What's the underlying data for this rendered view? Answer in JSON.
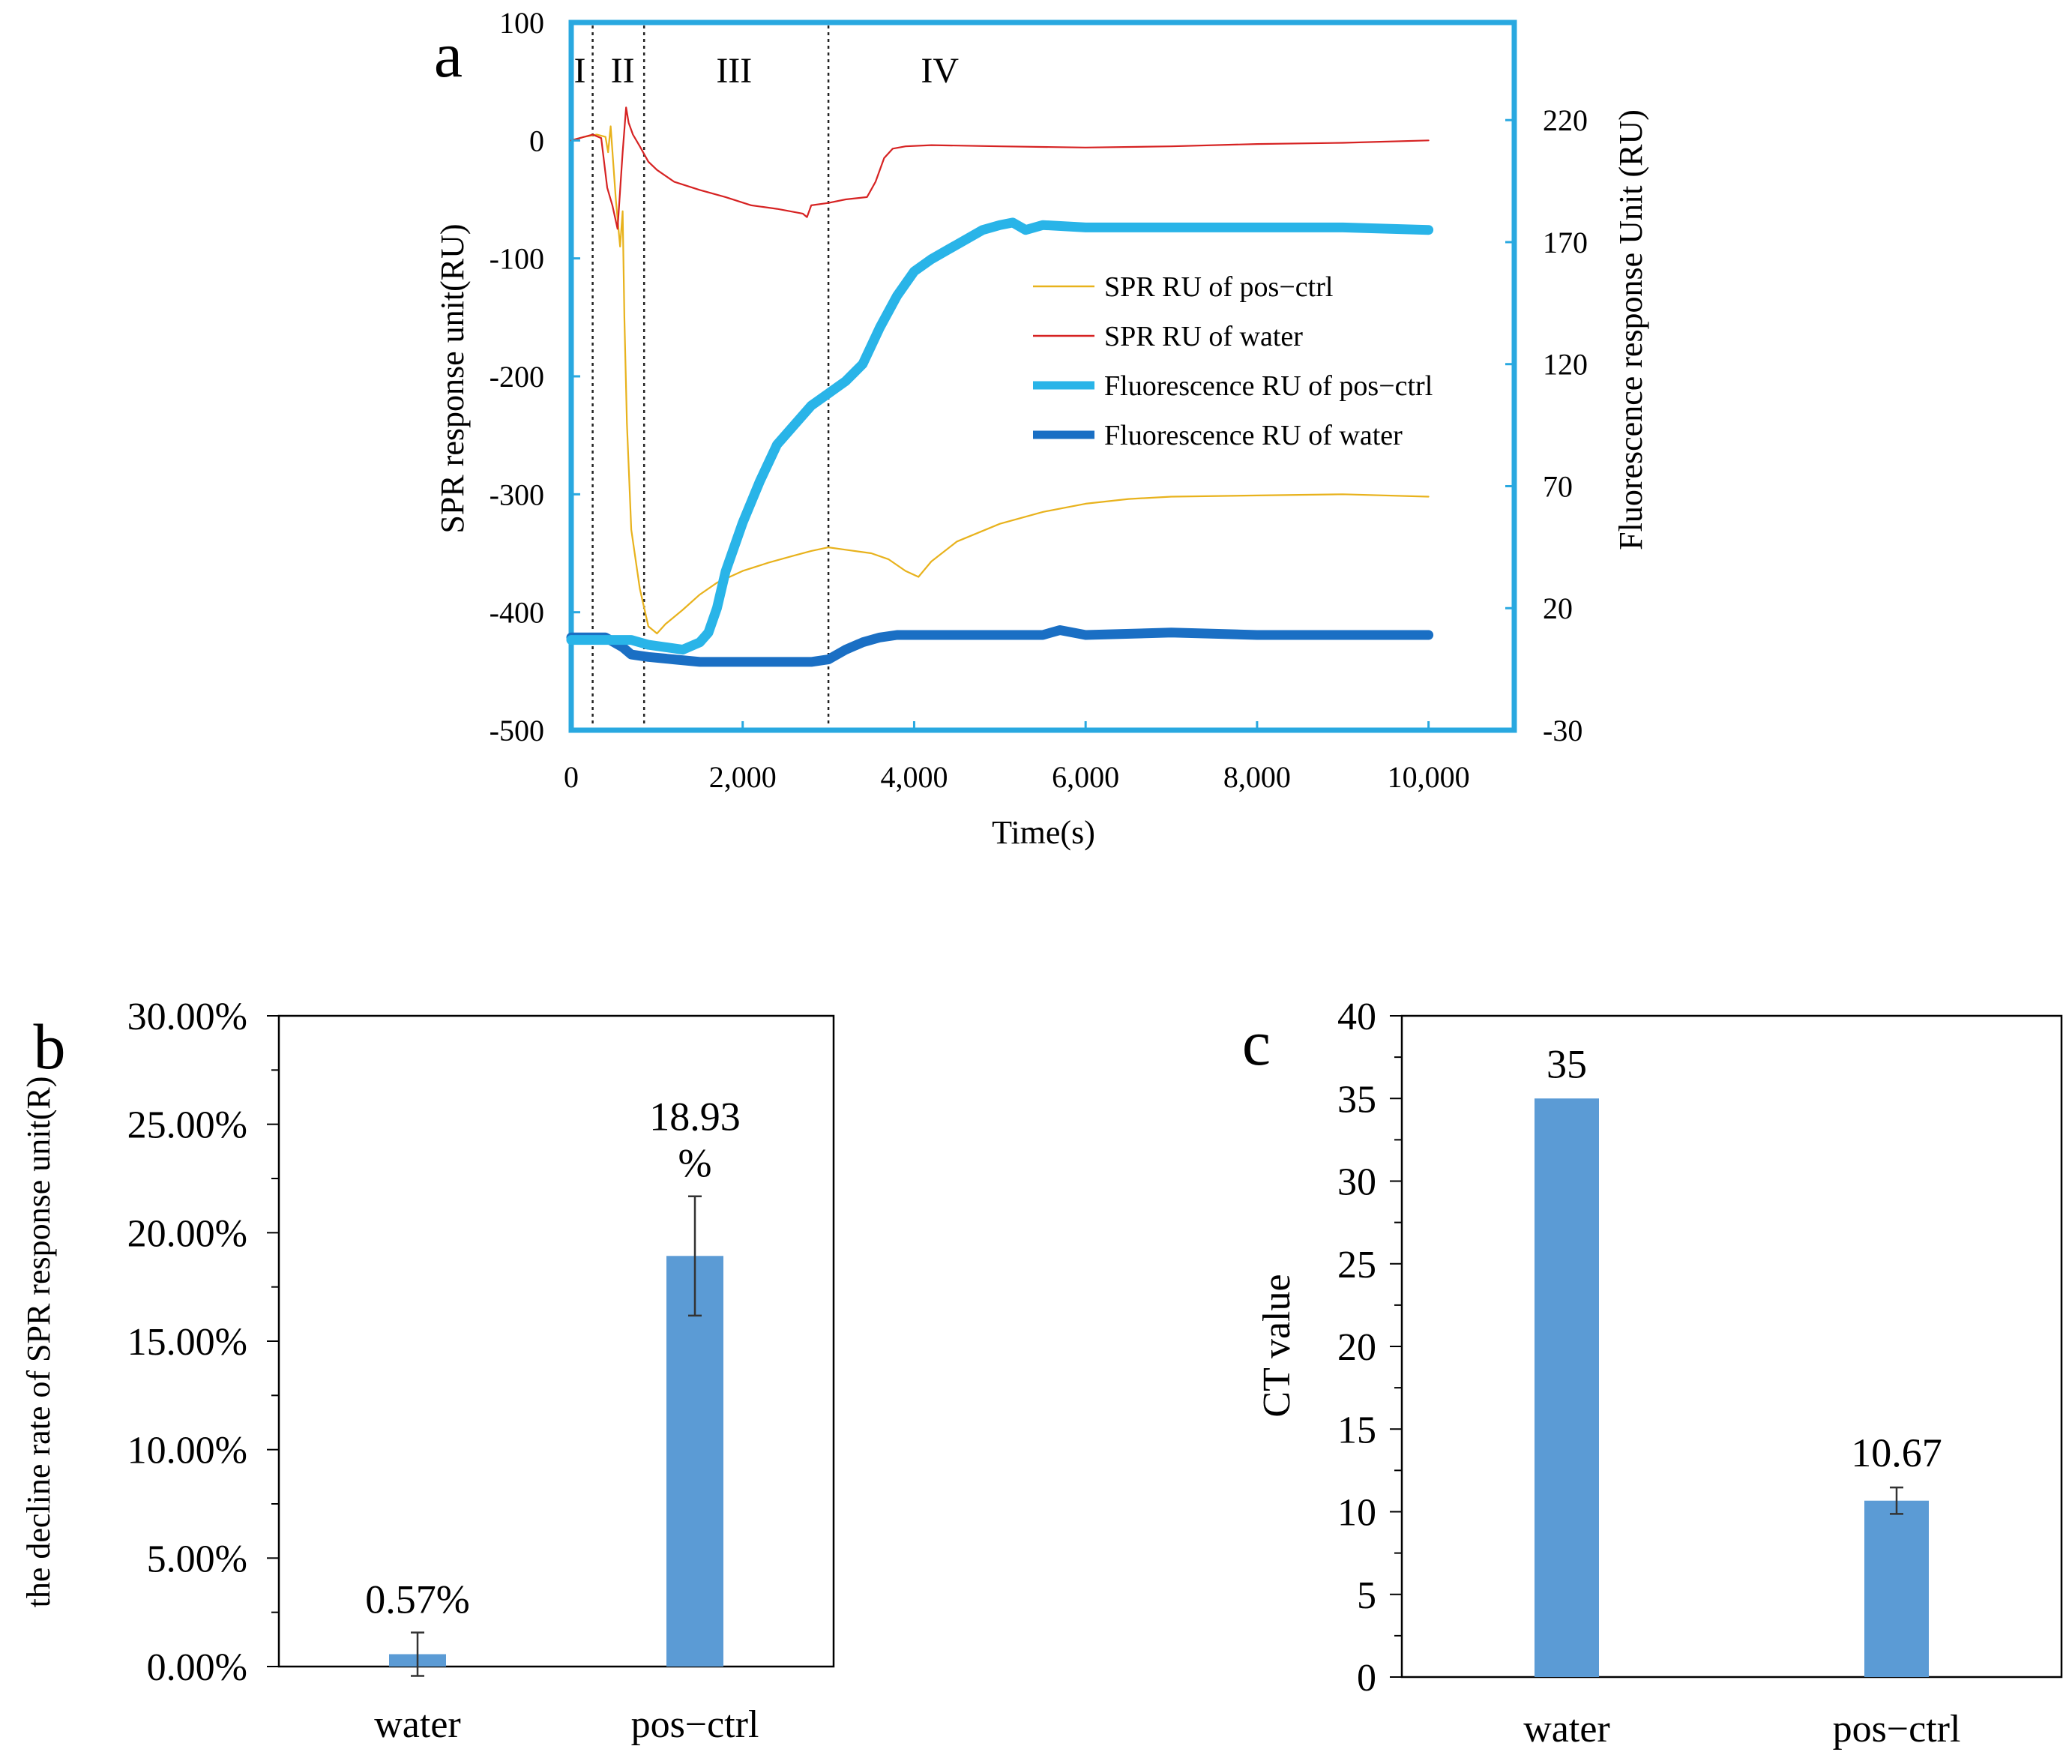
{
  "colors": {
    "spr_pos": "#e8b21c",
    "spr_water": "#d62222",
    "fl_pos": "#29b4e8",
    "fl_water": "#1a6fc4",
    "bar": "#5b9bd5",
    "frame_a": "#29a8e0"
  },
  "chart_data": [
    {
      "panel": "a",
      "type": "line",
      "xlabel": "Time(s)",
      "ylabel": "SPR response unit(RU)",
      "y2label": "Fluorescence response Unit (RU)",
      "xlim": [
        0,
        11000
      ],
      "ylim": [
        -500,
        100
      ],
      "y2lim": [
        -30,
        260
      ],
      "xticks": [
        "0",
        "2,000",
        "4,000",
        "6,000",
        "8,000",
        "10,000"
      ],
      "xtick_values": [
        0,
        2000,
        4000,
        6000,
        8000,
        10000
      ],
      "yticks": [
        "100",
        "0",
        "-100",
        "-200",
        "-300",
        "-400",
        "-500"
      ],
      "ytick_values": [
        100,
        0,
        -100,
        -200,
        -300,
        -400,
        -500
      ],
      "y2ticks": [
        "220",
        "170",
        "120",
        "70",
        "20",
        "-30"
      ],
      "y2tick_values": [
        220,
        170,
        120,
        70,
        20,
        -30
      ],
      "phase_boundaries": [
        250,
        850,
        3000
      ],
      "phases": [
        {
          "label": "I",
          "x": 100
        },
        {
          "label": "II",
          "x": 600
        },
        {
          "label": "III",
          "x": 1900
        },
        {
          "label": "IV",
          "x": 4300
        }
      ],
      "series": [
        {
          "name": "SPR RU of pos−ctrl",
          "axis": "left",
          "color_key": "spr_pos",
          "width": 2.2,
          "x": [
            0,
            150,
            300,
            400,
            430,
            460,
            520,
            570,
            600,
            620,
            650,
            700,
            800,
            900,
            1000,
            1100,
            1300,
            1500,
            1700,
            2000,
            2300,
            2600,
            2800,
            3000,
            3200,
            3500,
            3700,
            3900,
            4050,
            4200,
            4500,
            5000,
            5500,
            6000,
            6500,
            7000,
            8000,
            9000,
            10000
          ],
          "y": [
            0,
            3,
            5,
            3,
            -10,
            12,
            -50,
            -90,
            -60,
            -150,
            -240,
            -330,
            -380,
            -412,
            -418,
            -410,
            -398,
            -385,
            -375,
            -365,
            -358,
            -352,
            -348,
            -345,
            -347,
            -350,
            -355,
            -365,
            -370,
            -357,
            -340,
            -325,
            -315,
            -308,
            -304,
            -302,
            -301,
            -300,
            -302
          ]
        },
        {
          "name": "SPR RU of water",
          "axis": "left",
          "color_key": "spr_water",
          "width": 2.2,
          "x": [
            0,
            100,
            250,
            350,
            420,
            480,
            540,
            600,
            640,
            670,
            720,
            800,
            900,
            1000,
            1200,
            1500,
            1800,
            2100,
            2400,
            2700,
            2750,
            2800,
            3000,
            3200,
            3450,
            3550,
            3650,
            3750,
            3900,
            4200,
            5000,
            6000,
            7000,
            8000,
            9000,
            10000
          ],
          "y": [
            0,
            2,
            5,
            2,
            -40,
            -55,
            -75,
            -10,
            28,
            15,
            5,
            -5,
            -18,
            -25,
            -35,
            -42,
            -48,
            -55,
            -58,
            -62,
            -65,
            -55,
            -53,
            -50,
            -48,
            -35,
            -15,
            -7,
            -5,
            -4,
            -5,
            -6,
            -5,
            -3,
            -2,
            0
          ]
        },
        {
          "name": "Fluorescence RU of pos−ctrl",
          "axis": "right",
          "color_key": "fl_pos",
          "width": 13,
          "x": [
            0,
            200,
            500,
            700,
            900,
            1100,
            1300,
            1500,
            1600,
            1700,
            1800,
            2000,
            2200,
            2400,
            2600,
            2800,
            3000,
            3200,
            3400,
            3600,
            3800,
            4000,
            4200,
            4400,
            4600,
            4800,
            5000,
            5150,
            5300,
            5500,
            6000,
            7000,
            8000,
            9000,
            10000
          ],
          "y": [
            7,
            7,
            7,
            7,
            5,
            4,
            3,
            6,
            10,
            20,
            35,
            55,
            72,
            87,
            95,
            103,
            108,
            113,
            120,
            135,
            148,
            158,
            163,
            167,
            171,
            175,
            177,
            178,
            175,
            177,
            176,
            176,
            176,
            176,
            175
          ]
        },
        {
          "name": "Fluorescence RU of water",
          "axis": "right",
          "color_key": "fl_water",
          "width": 13,
          "x": [
            0,
            200,
            400,
            500,
            600,
            700,
            900,
            1200,
            1500,
            2000,
            2500,
            2800,
            3000,
            3200,
            3400,
            3600,
            3800,
            4000,
            4500,
            5000,
            5500,
            5700,
            6000,
            7000,
            8000,
            9000,
            10000
          ],
          "y": [
            8,
            8,
            8,
            6,
            4,
            1,
            0,
            -1,
            -2,
            -2,
            -2,
            -2,
            -1,
            3,
            6,
            8,
            9,
            9,
            9,
            9,
            9,
            11,
            9,
            10,
            9,
            9,
            9
          ]
        }
      ]
    },
    {
      "panel": "b",
      "type": "bar",
      "categories": [
        "water",
        "pos−ctrl"
      ],
      "values": [
        0.57,
        18.93
      ],
      "errors": [
        1.0,
        2.75
      ],
      "data_labels": [
        "0.57%",
        "18.93\n%"
      ],
      "ylabel": "the decline rate of SPR response unit(R)",
      "ylim": [
        0,
        30
      ],
      "yticks": [
        "30.00%",
        "25.00%",
        "20.00%",
        "15.00%",
        "10.00%",
        "5.00%",
        "0.00%"
      ],
      "ytick_values": [
        30,
        25,
        20,
        15,
        10,
        5,
        0
      ],
      "minor_step": 2.5
    },
    {
      "panel": "c",
      "type": "bar",
      "categories": [
        "water",
        "pos−ctrl"
      ],
      "values": [
        35,
        10.67
      ],
      "errors": [
        0,
        0.8
      ],
      "data_labels": [
        "35",
        "10.67"
      ],
      "ylabel": "CT value",
      "ylim": [
        0,
        40
      ],
      "yticks": [
        "40",
        "35",
        "30",
        "25",
        "20",
        "15",
        "10",
        "5",
        "0"
      ],
      "ytick_values": [
        40,
        35,
        30,
        25,
        20,
        15,
        10,
        5,
        0
      ],
      "minor_step": 2.5
    }
  ]
}
